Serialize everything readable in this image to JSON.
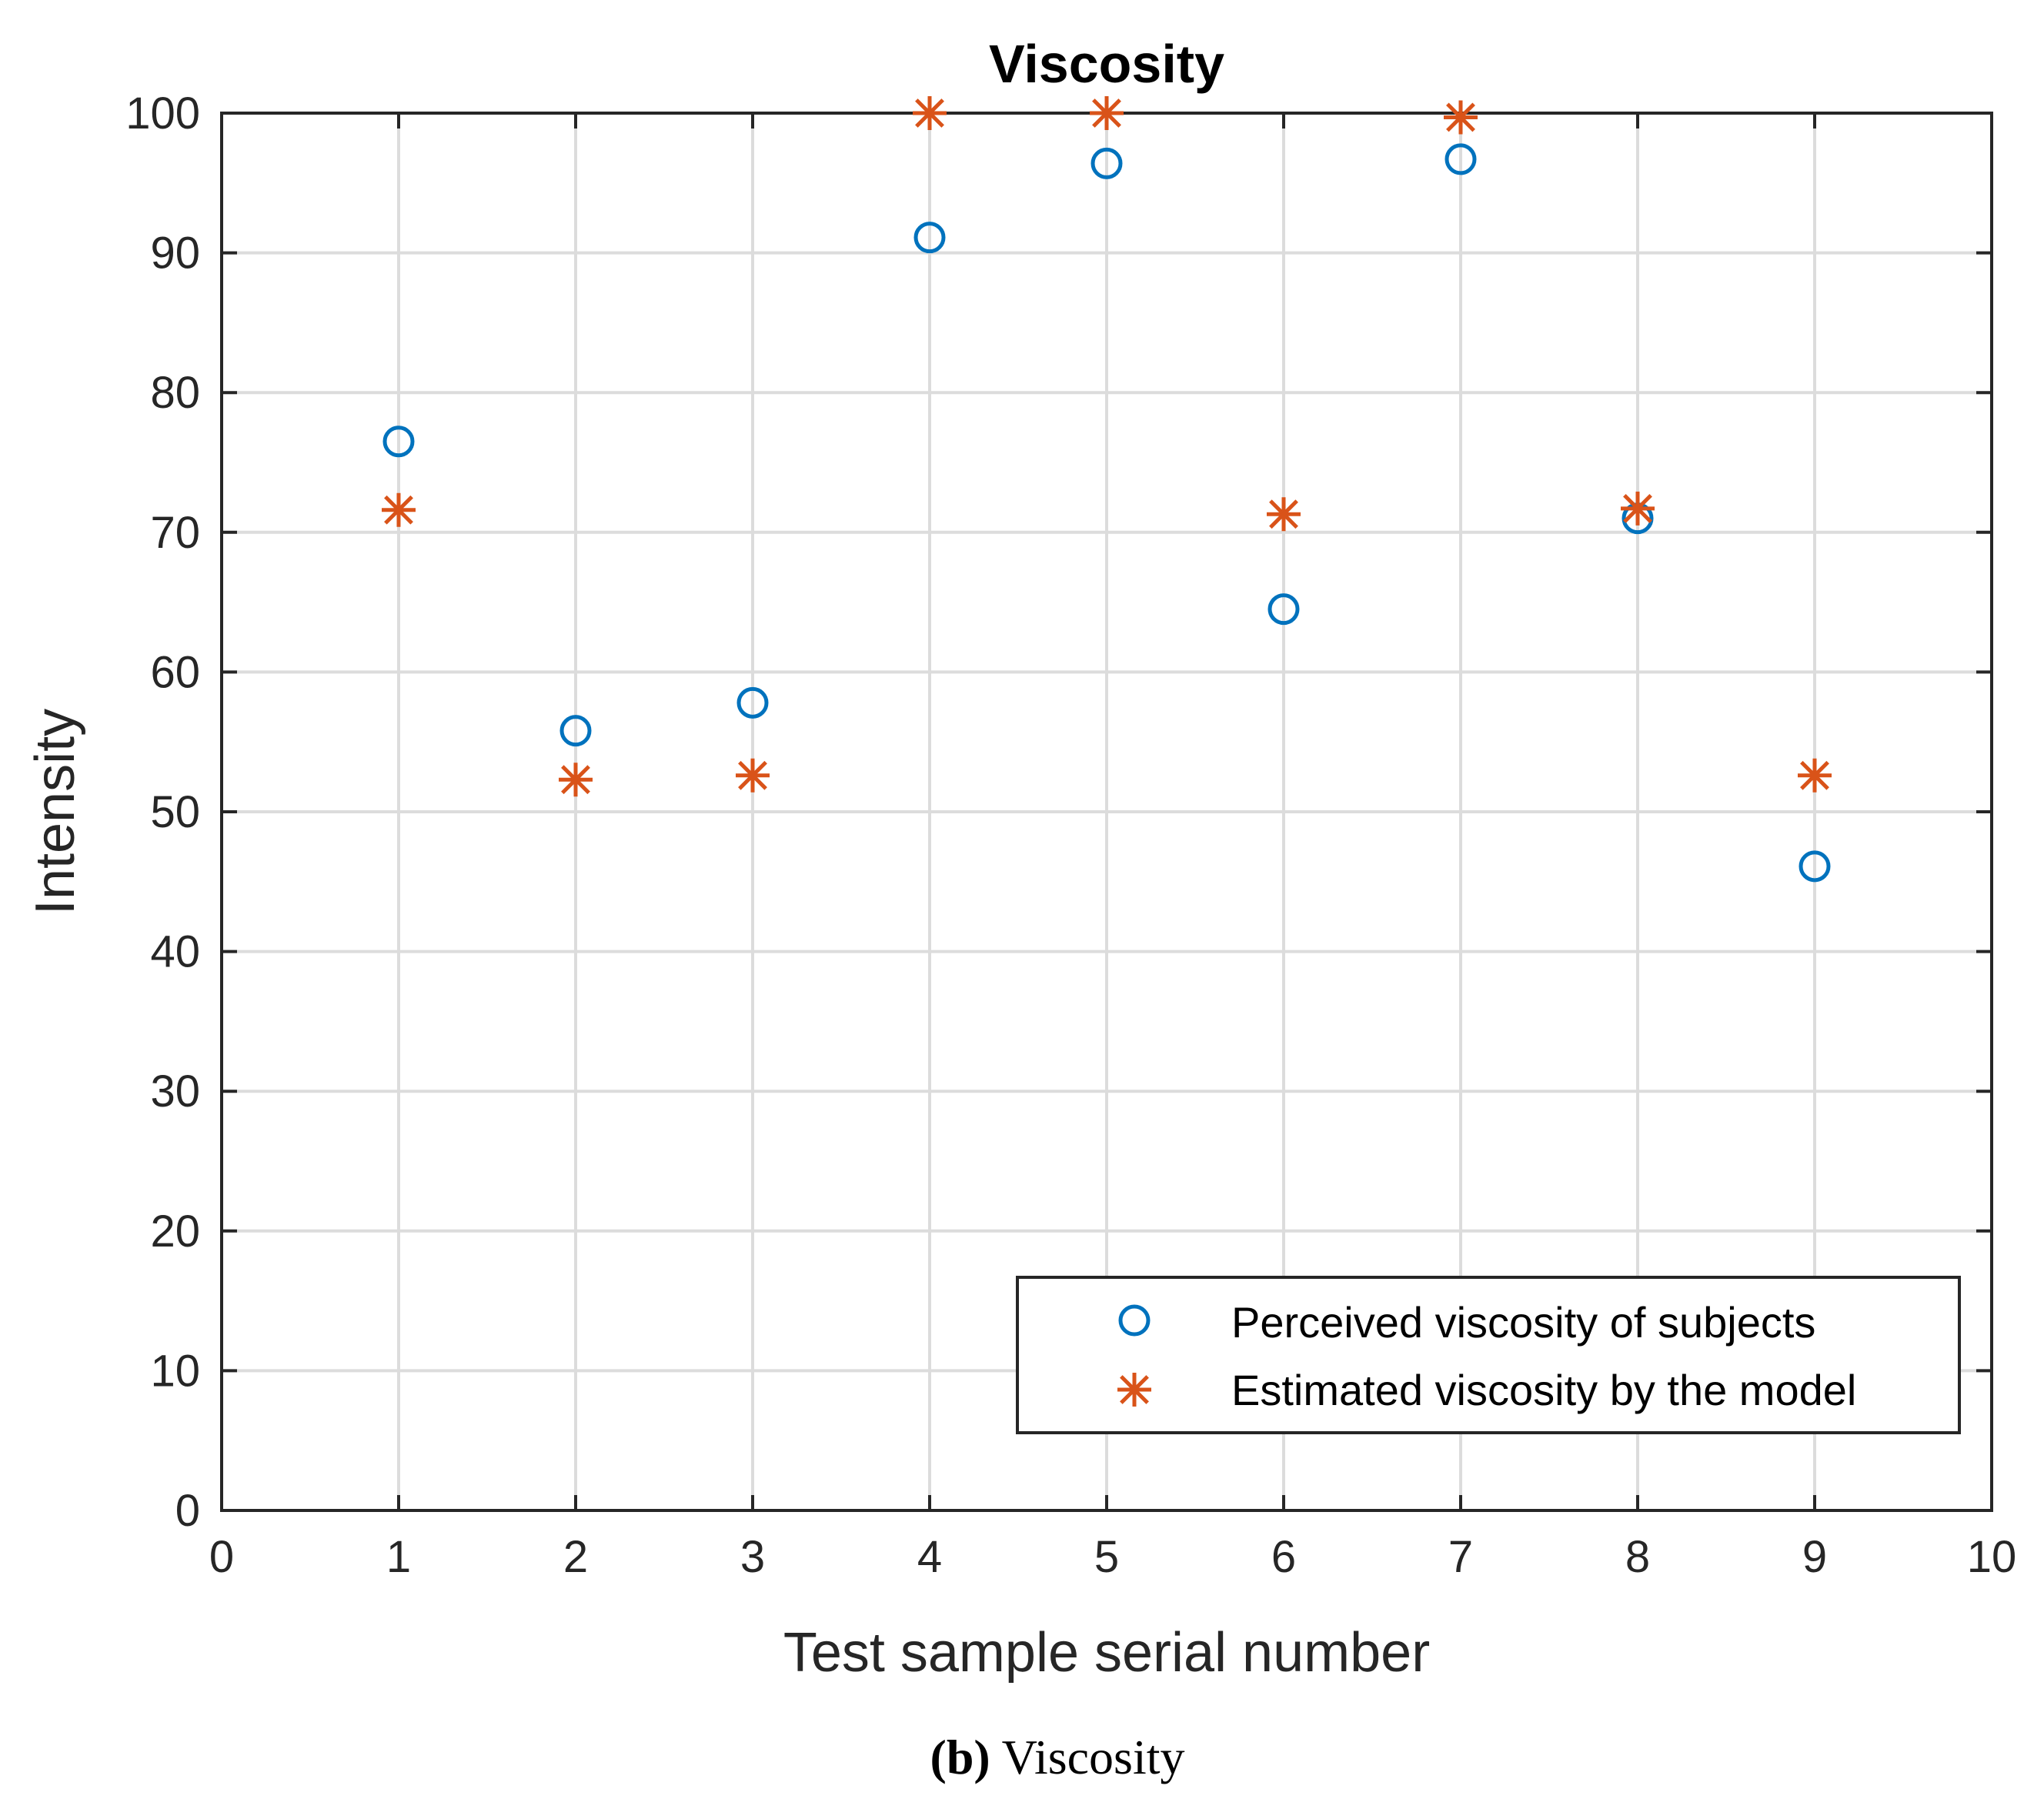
{
  "chart_data": {
    "type": "scatter",
    "title": "Viscosity",
    "xlabel": "Test sample serial number",
    "ylabel": "Intensity",
    "xlim": [
      0,
      10
    ],
    "ylim": [
      0,
      100
    ],
    "xticks": [
      0,
      1,
      2,
      3,
      4,
      5,
      6,
      7,
      8,
      9,
      10
    ],
    "yticks": [
      0,
      10,
      20,
      30,
      40,
      50,
      60,
      70,
      80,
      90,
      100
    ],
    "grid": true,
    "legend_position": "bottom-right",
    "series": [
      {
        "name": "Perceived viscosity of subjects",
        "marker": "circle",
        "color": "#0072BD",
        "x": [
          1,
          2,
          3,
          4,
          5,
          6,
          7,
          8,
          9
        ],
        "y": [
          76.5,
          55.8,
          57.8,
          91.1,
          96.4,
          64.5,
          96.7,
          71.0,
          46.1
        ]
      },
      {
        "name": "Estimated viscosity by the model",
        "marker": "asterisk",
        "color": "#D95319",
        "x": [
          1,
          2,
          3,
          4,
          5,
          6,
          7,
          8,
          9
        ],
        "y": [
          71.6,
          52.3,
          52.6,
          100,
          100,
          71.3,
          99.7,
          71.7,
          52.6
        ]
      }
    ]
  },
  "caption": {
    "label": "(b)",
    "text": "Viscosity"
  }
}
